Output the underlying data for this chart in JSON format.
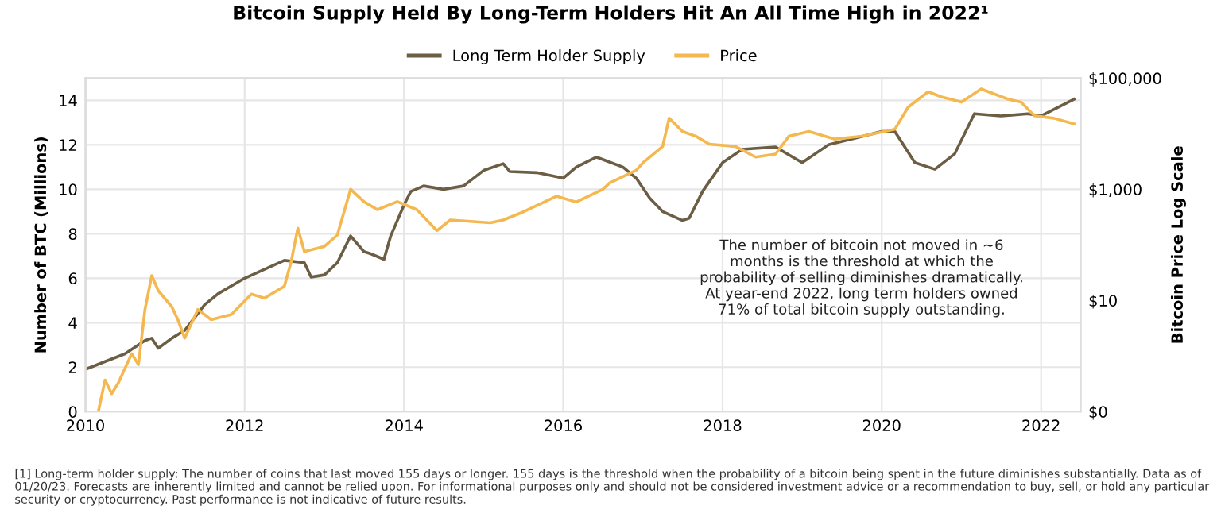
{
  "chart_data": {
    "type": "line",
    "title": "Bitcoin Supply Held By Long-Term Holders Hit An All Time High in 2022¹",
    "ylabel": "Number of BTC (Millions)",
    "y2label": "Bitcoin Price Log Scale",
    "xlim": [
      "2010-01",
      "2022-07"
    ],
    "xticks": [
      {
        "value": "2010-01",
        "label": "2010"
      },
      {
        "value": "2012-01",
        "label": "2012"
      },
      {
        "value": "2014-01",
        "label": "2014"
      },
      {
        "value": "2016-01",
        "label": "2016"
      },
      {
        "value": "2018-01",
        "label": "2018"
      },
      {
        "value": "2020-01",
        "label": "2020"
      },
      {
        "value": "2022-01",
        "label": "2022"
      }
    ],
    "ylim": [
      0,
      15
    ],
    "yticks": [
      0,
      2,
      4,
      6,
      8,
      10,
      12,
      14
    ],
    "log": "y2",
    "y2lim": [
      0.1,
      100000
    ],
    "y2ticks": [
      {
        "value": 0.1,
        "label": "$0"
      },
      {
        "value": 10,
        "label": "$10"
      },
      {
        "value": 1000,
        "label": "$1,000"
      },
      {
        "value": 100000,
        "label": "$100,000"
      }
    ],
    "grid": true,
    "legend": "top",
    "line_style": "solid",
    "marker": "none",
    "series": [
      {
        "name": "Long Term Holder Supply",
        "color": "#6b5e45",
        "x": [
          "2010-01",
          "2010-04",
          "2010-07",
          "2010-10",
          "2010-11",
          "2010-12",
          "2011-02",
          "2011-04",
          "2011-07",
          "2011-09",
          "2012-01",
          "2012-04",
          "2012-07",
          "2012-10",
          "2012-11",
          "2013-01",
          "2013-03",
          "2013-05",
          "2013-07",
          "2013-08",
          "2013-10",
          "2013-11",
          "2014-01",
          "2014-02",
          "2014-04",
          "2014-07",
          "2014-10",
          "2015-01",
          "2015-04",
          "2015-05",
          "2015-09",
          "2016-01",
          "2016-03",
          "2016-06",
          "2016-10",
          "2016-12",
          "2017-02",
          "2017-04",
          "2017-07",
          "2017-08",
          "2017-10",
          "2018-01",
          "2018-04",
          "2018-09",
          "2019-01",
          "2019-05",
          "2019-09",
          "2020-01",
          "2020-03",
          "2020-06",
          "2020-09",
          "2020-12",
          "2021-03",
          "2021-07",
          "2021-11",
          "2022-01",
          "2022-06"
        ],
        "values": [
          1.9,
          2.25,
          2.6,
          3.2,
          3.3,
          2.85,
          3.3,
          3.65,
          4.8,
          5.3,
          6.0,
          6.4,
          6.8,
          6.7,
          6.05,
          6.15,
          6.7,
          7.9,
          7.2,
          7.1,
          6.85,
          7.9,
          9.3,
          9.9,
          10.15,
          10.0,
          10.15,
          10.85,
          11.15,
          10.8,
          10.75,
          10.5,
          11.0,
          11.45,
          11.0,
          10.5,
          9.6,
          9.0,
          8.6,
          8.7,
          9.9,
          11.2,
          11.8,
          11.9,
          11.2,
          12.0,
          12.3,
          12.6,
          12.6,
          11.2,
          10.9,
          11.6,
          13.4,
          13.3,
          13.4,
          13.3,
          14.05
        ]
      },
      {
        "name": "Price",
        "color": "#f5b84f",
        "axis": "y2",
        "x": [
          "2010-03",
          "2010-04",
          "2010-05",
          "2010-06",
          "2010-08",
          "2010-09",
          "2010-10",
          "2010-11",
          "2010-12",
          "2011-02",
          "2011-03",
          "2011-04",
          "2011-06",
          "2011-08",
          "2011-11",
          "2012-02",
          "2012-04",
          "2012-07",
          "2012-08",
          "2012-09",
          "2012-10",
          "2013-01",
          "2013-03",
          "2013-05",
          "2013-07",
          "2013-09",
          "2013-12",
          "2014-03",
          "2014-06",
          "2014-08",
          "2015-02",
          "2015-04",
          "2015-07",
          "2015-12",
          "2016-03",
          "2016-07",
          "2016-08",
          "2016-12",
          "2017-01",
          "2017-04",
          "2017-05",
          "2017-07",
          "2017-09",
          "2017-11",
          "2018-03",
          "2018-06",
          "2018-09",
          "2018-11",
          "2019-02",
          "2019-06",
          "2019-10",
          "2020-03",
          "2020-05",
          "2020-08",
          "2020-10",
          "2021-01",
          "2021-04",
          "2021-08",
          "2021-10",
          "2021-12",
          "2022-03",
          "2022-06"
        ],
        "values": [
          0.1,
          0.37,
          0.21,
          0.33,
          1.1,
          0.7,
          6.9,
          28,
          15,
          7.7,
          4.5,
          2.1,
          6.9,
          4.5,
          5.6,
          13,
          11,
          18,
          49,
          200,
          76,
          94,
          150,
          1000,
          600,
          430,
          600,
          430,
          180,
          280,
          250,
          280,
          390,
          750,
          590,
          1000,
          1300,
          2200,
          3000,
          5900,
          19000,
          11000,
          9000,
          6500,
          5900,
          3800,
          4300,
          9000,
          11000,
          8000,
          9000,
          12000,
          30000,
          57000,
          46000,
          37000,
          64000,
          42000,
          37000,
          21000,
          19000,
          15000
        ]
      }
    ],
    "annotations": [
      "The number of bitcoin not moved in ~6\nmonths is the threshold at which the\nprobability of selling diminishes dramatically.\nAt year-end 2022, long term holders owned\n71% of total bitcoin supply outstanding.",
      "[1] Long-term holder supply: The number of coins that last moved 155 days or longer. 155 days is the threshold when the probability of a bitcoin being spent in the future diminishes substantially. Data as of 01/20/23. Forecasts are inherently limited and cannot be relied upon. For informational purposes only and should not be considered investment advice or a recommendation to buy, sell, or hold any particular security or cryptocurrency. Past performance is not indicative of future results."
    ]
  }
}
